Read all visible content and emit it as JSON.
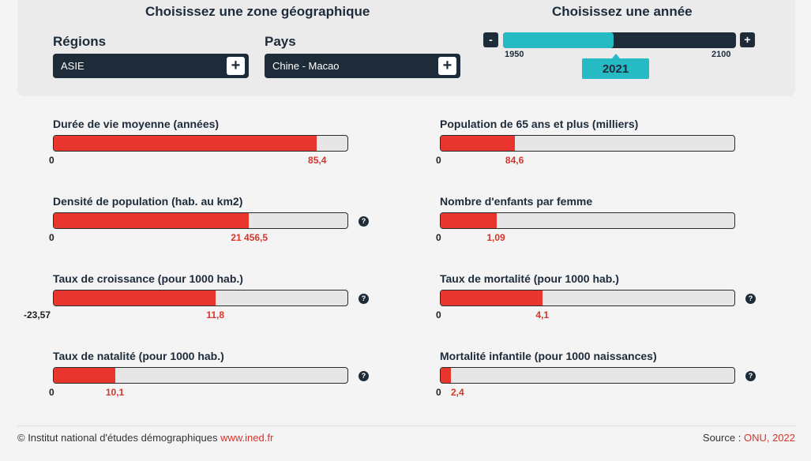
{
  "zone": {
    "title": "Choisissez une zone géographique",
    "regions_label": "Régions",
    "region_value": "ASIE",
    "pays_label": "Pays",
    "pays_value": "Chine - Macao",
    "plus_label": "+"
  },
  "year": {
    "title": "Choisissez une année",
    "minus_label": "-",
    "plus_label": "+",
    "min": "1950",
    "max": "2100",
    "value": "2021",
    "progress": 0.476
  },
  "indicators": [
    {
      "title": "Durée de vie moyenne (années)",
      "min": "0",
      "value": "85,4",
      "fill": 0.895,
      "help": false
    },
    {
      "title": "Population de 65 ans et plus (milliers)",
      "min": "0",
      "value": "84,6",
      "fill": 0.253,
      "help": false
    },
    {
      "title": "Densité de population (hab. au km2)",
      "min": "0",
      "value": "21 456,5",
      "fill": 0.665,
      "help": true
    },
    {
      "title": "Nombre d'enfants par femme",
      "min": "0",
      "value": "1,09",
      "fill": 0.19,
      "help": false
    },
    {
      "title": "Taux de croissance (pour 1000 hab.)",
      "min": "-23,57",
      "value": "11,8",
      "fill": 0.55,
      "help": true
    },
    {
      "title": "Taux de mortalité (pour 1000 hab.)",
      "min": "0",
      "value": "4,1",
      "fill": 0.347,
      "help": true
    },
    {
      "title": "Taux de natalité (pour 1000 hab.)",
      "min": "0",
      "value": "10,1",
      "fill": 0.21,
      "help": true
    },
    {
      "title": "Mortalité infantile (pour 1000 naissances)",
      "min": "0",
      "value": "2,4",
      "fill": 0.035,
      "help": true
    }
  ],
  "help_label": "?",
  "footer": {
    "copyright": "© Institut national d'études démographiques",
    "site": "www.ined.fr",
    "source_label": "Source :",
    "source_value": "ONU, 2022"
  },
  "colors": {
    "bar_fill": "#e8362f",
    "slider_fill": "#26bac4",
    "dark": "#1e2b38"
  }
}
